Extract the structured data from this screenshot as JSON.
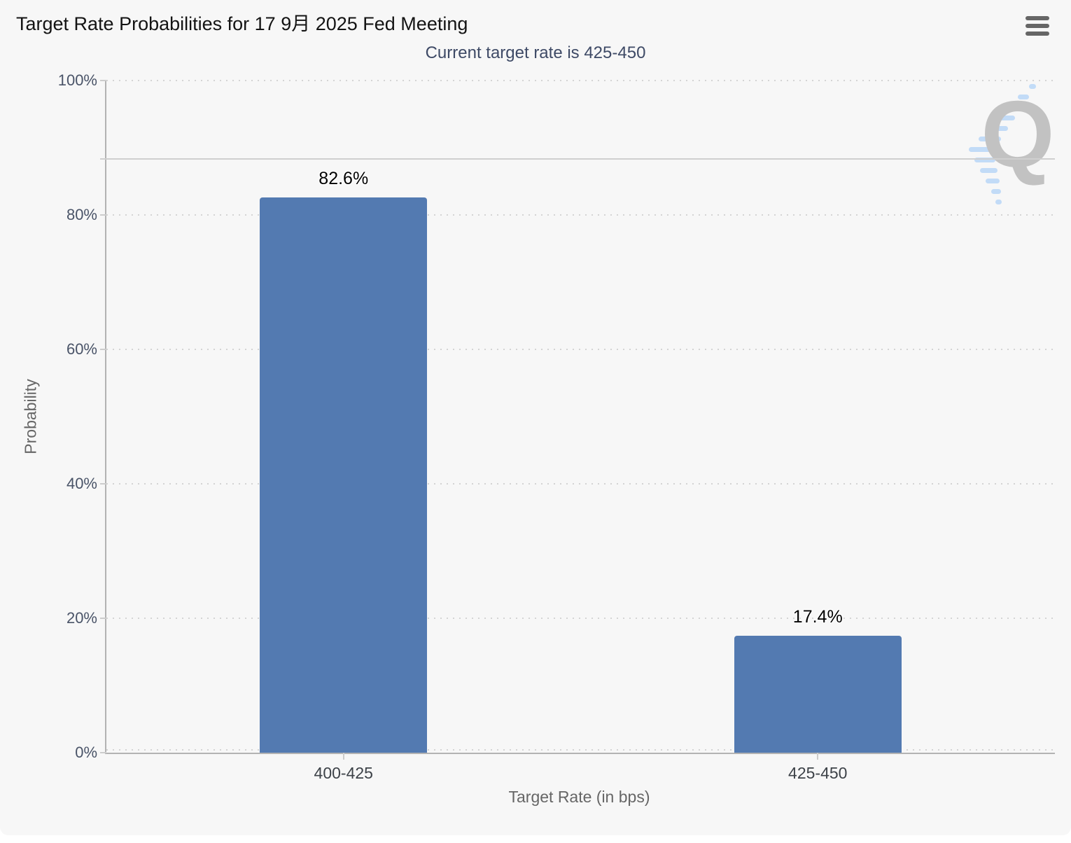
{
  "header": {
    "menu_icon": "hamburger-menu-icon"
  },
  "chart_data": {
    "type": "bar",
    "title": "Target Rate Probabilities for 17 9月 2025 Fed Meeting",
    "subtitle": "Current target rate is 425-450",
    "categories": [
      "400-425",
      "425-450"
    ],
    "values": [
      82.6,
      17.4
    ],
    "value_labels": [
      "82.6%",
      "17.4%"
    ],
    "xlabel": "Target Rate (in bps)",
    "ylabel": "Probability",
    "ylim": [
      0,
      100
    ],
    "ytick_values": [
      0,
      20,
      40,
      60,
      80,
      100
    ],
    "ytick_labels": [
      "0%",
      "20%",
      "40%",
      "60%",
      "80%",
      "100%"
    ],
    "grid": "horizontal dotted",
    "plot_line_value": 88.3,
    "legend_position": "none",
    "bar_color": "#537ab1"
  },
  "watermark": {
    "letter": "Q"
  },
  "colors": {
    "background": "#f7f7f7",
    "bar": "#537ab1",
    "subtitle": "#3e4a66",
    "axis_line": "#b3b3b3",
    "gridline": "#d4d4d4",
    "watermark_gray": "#c2c2c2",
    "watermark_blue": "#b9d7f8"
  }
}
